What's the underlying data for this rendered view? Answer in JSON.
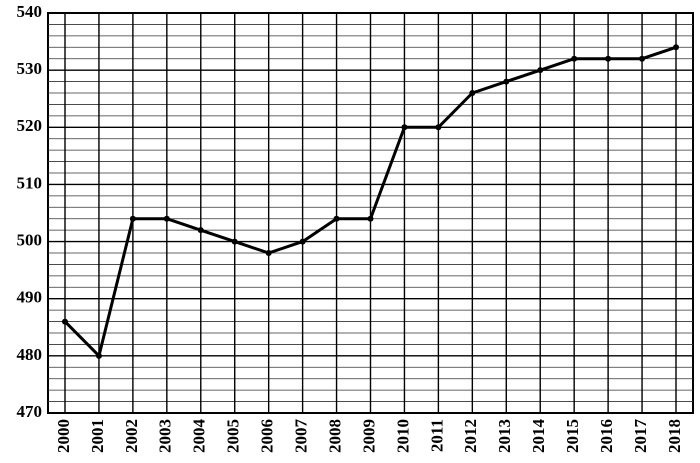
{
  "chart_data": {
    "type": "line",
    "categories": [
      "2000",
      "2001",
      "2002",
      "2003",
      "2004",
      "2005",
      "2006",
      "2007",
      "2008",
      "2009",
      "2010",
      "2011",
      "2012",
      "2013",
      "2014",
      "2015",
      "2016",
      "2017",
      "2018"
    ],
    "values": [
      486,
      480,
      504,
      504,
      502,
      500,
      498,
      500,
      504,
      504,
      520,
      520,
      526,
      528,
      530,
      532,
      532,
      532,
      534
    ],
    "color": "#000000",
    "ylim": [
      470,
      540
    ],
    "yticks": [
      470,
      480,
      490,
      500,
      510,
      520,
      530,
      540
    ],
    "minor_yticks": [
      472,
      474,
      476,
      478,
      482,
      484,
      486,
      488,
      492,
      494,
      496,
      498,
      502,
      504,
      506,
      508,
      512,
      514,
      516,
      518,
      522,
      524,
      526,
      528,
      532,
      534,
      536,
      538
    ],
    "grid": true
  }
}
